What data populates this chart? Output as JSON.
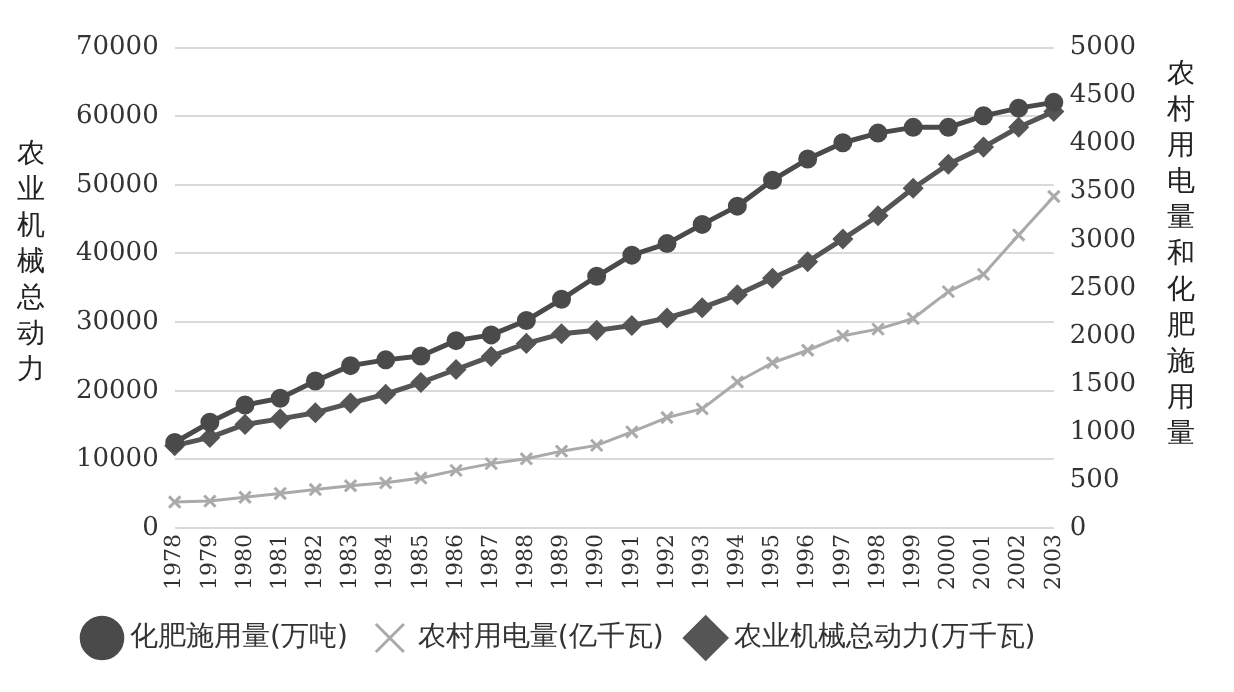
{
  "chart_data": {
    "type": "line",
    "ylabel": "农业机械总动力",
    "y2label": "农村用电量和化肥施用量",
    "categories": [
      "1978",
      "1979",
      "1980",
      "1981",
      "1982",
      "1983",
      "1984",
      "1985",
      "1986",
      "1987",
      "1988",
      "1989",
      "1990",
      "1991",
      "1992",
      "1993",
      "1994",
      "1995",
      "1996",
      "1997",
      "1998",
      "1999",
      "2000",
      "2001",
      "2002",
      "2003"
    ],
    "series": [
      {
        "name": "农业机械总动力(万千瓦)",
        "color": "#555555",
        "marker": "diamond",
        "values": [
          12000,
          13200,
          15100,
          15900,
          16800,
          18200,
          19500,
          21200,
          23100,
          25000,
          26900,
          28300,
          28800,
          29500,
          30600,
          32100,
          34000,
          36400,
          38800,
          42100,
          45500,
          49500,
          53000,
          55500,
          58400,
          60700
        ]
      },
      {
        "name": "农村用电量(亿千瓦)",
        "color": "#aaaaaa",
        "marker": "cross",
        "axis": "y2",
        "values": [
          270,
          280,
          320,
          360,
          400,
          440,
          470,
          520,
          600,
          670,
          720,
          800,
          860,
          1000,
          1150,
          1240,
          1520,
          1720,
          1850,
          2000,
          2070,
          2180,
          2460,
          2640,
          3050,
          3450
        ]
      },
      {
        "name": "化肥施用量(万吨)",
        "color": "#4a4a4a",
        "marker": "circle",
        "axis": "y2",
        "values": [
          890,
          1100,
          1280,
          1350,
          1530,
          1690,
          1750,
          1790,
          1950,
          2010,
          2160,
          2380,
          2620,
          2840,
          2960,
          3160,
          3350,
          3620,
          3840,
          4010,
          4110,
          4170,
          4170,
          4290,
          4370,
          4430
        ]
      }
    ],
    "ylim": [
      0,
      70000
    ],
    "yticks": [
      0,
      10000,
      20000,
      30000,
      40000,
      50000,
      60000,
      70000
    ],
    "y2lim": [
      0,
      5000
    ],
    "y2ticks": [
      0,
      500,
      1000,
      1500,
      2000,
      2500,
      3000,
      3500,
      4000,
      4500,
      5000
    ],
    "grid": "y",
    "legend": "bottom",
    "line_style": "solid"
  }
}
